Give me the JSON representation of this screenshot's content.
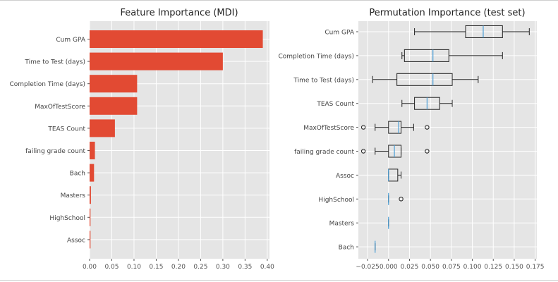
{
  "chart_data": [
    {
      "type": "bar",
      "orientation": "horizontal",
      "title": "Feature Importance (MDI)",
      "categories": [
        "Cum GPA",
        "Time to Test (days)",
        "Completion Time (days)",
        "MaxOfTestScore",
        "TEAS Count",
        "failing grade count",
        "Bach",
        "Masters",
        "HighSchool",
        "Assoc"
      ],
      "values": [
        0.39,
        0.3,
        0.107,
        0.107,
        0.057,
        0.012,
        0.01,
        0.003,
        0.002,
        0.002
      ],
      "xlim": [
        0,
        0.405
      ],
      "xticks": [
        0.0,
        0.05,
        0.1,
        0.15,
        0.2,
        0.25,
        0.3,
        0.35,
        0.4
      ],
      "xtick_labels": [
        "0.00",
        "0.05",
        "0.10",
        "0.15",
        "0.20",
        "0.25",
        "0.30",
        "0.35",
        "0.40"
      ],
      "grid": true,
      "bar_color": "#E24A33"
    },
    {
      "type": "boxplot",
      "orientation": "horizontal",
      "title": "Permutation Importance (test set)",
      "categories": [
        "Cum GPA",
        "Completion Time (days)",
        "Time to Test (days)",
        "TEAS Count",
        "MaxOfTestScore",
        "failing grade count",
        "Assoc",
        "HighSchool",
        "Masters",
        "Bach"
      ],
      "boxes": [
        {
          "whisker_low": 0.031,
          "q1": 0.092,
          "median": 0.113,
          "q3": 0.136,
          "whisker_high": 0.168,
          "outliers": []
        },
        {
          "whisker_low": 0.016,
          "q1": 0.019,
          "median": 0.053,
          "q3": 0.072,
          "whisker_high": 0.136,
          "outliers": []
        },
        {
          "whisker_low": -0.019,
          "q1": 0.01,
          "median": 0.053,
          "q3": 0.076,
          "whisker_high": 0.107,
          "outliers": []
        },
        {
          "whisker_low": 0.016,
          "q1": 0.031,
          "median": 0.046,
          "q3": 0.061,
          "whisker_high": 0.076,
          "outliers": []
        },
        {
          "whisker_low": -0.016,
          "q1": 0.0,
          "median": 0.012,
          "q3": 0.015,
          "whisker_high": 0.03,
          "outliers": [
            -0.03,
            0.046
          ]
        },
        {
          "whisker_low": -0.016,
          "q1": 0.0,
          "median": 0.007,
          "q3": 0.015,
          "whisker_high": 0.015,
          "outliers": [
            -0.03,
            0.046
          ]
        },
        {
          "whisker_low": 0.0,
          "q1": 0.0,
          "median": 0.0,
          "q3": 0.011,
          "whisker_high": 0.015,
          "outliers": []
        },
        {
          "whisker_low": 0.0,
          "q1": 0.0,
          "median": 0.0,
          "q3": 0.0,
          "whisker_high": 0.0,
          "outliers": [
            0.015
          ]
        },
        {
          "whisker_low": 0.0,
          "q1": 0.0,
          "median": 0.0,
          "q3": 0.0,
          "whisker_high": 0.0,
          "outliers": []
        },
        {
          "whisker_low": -0.016,
          "q1": -0.016,
          "median": -0.016,
          "q3": -0.016,
          "whisker_high": -0.016,
          "outliers": []
        }
      ],
      "xlim": [
        -0.036,
        0.177
      ],
      "xticks": [
        -0.025,
        0.0,
        0.025,
        0.05,
        0.075,
        0.1,
        0.125,
        0.15,
        0.175
      ],
      "xtick_labels": [
        "−0.025",
        "0.000",
        "0.025",
        "0.050",
        "0.075",
        "0.100",
        "0.125",
        "0.150",
        "0.175"
      ],
      "grid": true,
      "box_color": "#222222",
      "median_color": "#4C9FD6"
    }
  ],
  "colors": {
    "axes_bg": "#E5E5E5",
    "grid": "#FFFFFF",
    "bar": "#E24A33",
    "median": "#4C9FD6",
    "box": "#222222"
  }
}
